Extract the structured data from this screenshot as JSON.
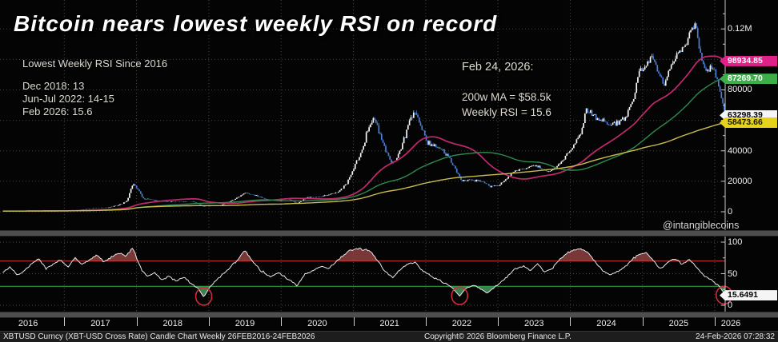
{
  "title": "Bitcoin nears lowest weekly RSI on record",
  "annotation_left": {
    "heading": "Lowest Weekly RSI Since 2016",
    "lines": [
      "Dec 2018: 13",
      "Jun-Jul 2022: 14-15",
      "Feb 2026: 15.6"
    ]
  },
  "annotation_right": {
    "heading": "Feb 24, 2026:",
    "lines": [
      "200w MA = $58.5k",
      "Weekly RSI = 15.6"
    ]
  },
  "watermark": "@intangiblecoins",
  "price_axis": {
    "labels": [
      {
        "text": "0.12M",
        "value": 120000
      },
      {
        "text": "80000",
        "value": 80000
      },
      {
        "text": "40000",
        "value": 40000
      },
      {
        "text": "20000",
        "value": 20000
      },
      {
        "text": "0",
        "value": 0
      }
    ]
  },
  "price_chips": [
    {
      "text": "98934.85",
      "value": 98934.85,
      "bg": "#e0218a",
      "fg": "#ffffff",
      "series": "50w-ma"
    },
    {
      "text": "87269.70",
      "value": 87269.7,
      "bg": "#3cae4a",
      "fg": "#ffffff",
      "series": "100w-ma"
    },
    {
      "text": "63298.39",
      "value": 63298.39,
      "bg": "#f5f5f5",
      "fg": "#000000",
      "series": "last-price"
    },
    {
      "text": "58473.66",
      "value": 58473.66,
      "bg": "#e6d21d",
      "fg": "#1a1a00",
      "series": "200w-ma"
    }
  ],
  "rsi_axis": {
    "labels": [
      {
        "text": "100",
        "value": 100
      },
      {
        "text": "50",
        "value": 50
      },
      {
        "text": "0",
        "value": 0
      }
    ],
    "chip": {
      "text": "15.6491",
      "value": 15.6491,
      "bg": "#f5f5f5",
      "fg": "#000000"
    }
  },
  "x_axis": {
    "years": [
      "2016",
      "2017",
      "2018",
      "2019",
      "2020",
      "2021",
      "2022",
      "2023",
      "2024",
      "2025",
      "2026"
    ]
  },
  "footer": {
    "left": "XBTUSD Curncy (XBT-USD Cross Rate) Candle Chart Weekly 26FEB2016-24FEB2026",
    "center": "Copyright© 2026 Bloomberg Finance L.P.",
    "right": "24-Feb-2026 07:28:32"
  },
  "chart_data": {
    "type": "candlestick+rsi",
    "instrument": "XBTUSD",
    "period": "Weekly",
    "x_domain_years": [
      2016.15,
      10.15
    ],
    "price_ylim": [
      0,
      126000
    ],
    "rsi_ylim": [
      0,
      100
    ],
    "last_price": 63298.39,
    "candle_up_color": "#f6f6f6",
    "candle_down_color": "#4a80d8",
    "price_keypoints": [
      [
        0.15,
        430
      ],
      [
        0.4,
        450
      ],
      [
        0.65,
        610
      ],
      [
        0.9,
        730
      ],
      [
        1.0,
        960
      ],
      [
        1.2,
        1150
      ],
      [
        1.45,
        2400
      ],
      [
        1.6,
        2600
      ],
      [
        1.75,
        4300
      ],
      [
        1.87,
        7200
      ],
      [
        1.95,
        18600
      ],
      [
        2.02,
        14500
      ],
      [
        2.1,
        8500
      ],
      [
        2.2,
        8000
      ],
      [
        2.35,
        6700
      ],
      [
        2.5,
        6400
      ],
      [
        2.62,
        6500
      ],
      [
        2.8,
        6300
      ],
      [
        2.92,
        3600
      ],
      [
        3.0,
        3700
      ],
      [
        3.15,
        4000
      ],
      [
        3.35,
        8000
      ],
      [
        3.5,
        12300
      ],
      [
        3.65,
        10500
      ],
      [
        3.8,
        8200
      ],
      [
        3.95,
        7200
      ],
      [
        4.1,
        8800
      ],
      [
        4.22,
        5300
      ],
      [
        4.35,
        9100
      ],
      [
        4.5,
        9400
      ],
      [
        4.65,
        11200
      ],
      [
        4.8,
        13000
      ],
      [
        4.92,
        19000
      ],
      [
        5.0,
        28000
      ],
      [
        5.1,
        38000
      ],
      [
        5.22,
        57000
      ],
      [
        5.3,
        61000
      ],
      [
        5.38,
        48000
      ],
      [
        5.5,
        34000
      ],
      [
        5.58,
        32500
      ],
      [
        5.7,
        47000
      ],
      [
        5.8,
        62000
      ],
      [
        5.88,
        65000
      ],
      [
        6.0,
        47000
      ],
      [
        6.15,
        42000
      ],
      [
        6.3,
        38000
      ],
      [
        6.42,
        28000
      ],
      [
        6.5,
        20500
      ],
      [
        6.65,
        21000
      ],
      [
        6.8,
        19500
      ],
      [
        6.9,
        16800
      ],
      [
        7.0,
        16800
      ],
      [
        7.1,
        21000
      ],
      [
        7.25,
        27500
      ],
      [
        7.4,
        28500
      ],
      [
        7.55,
        30200
      ],
      [
        7.68,
        26300
      ],
      [
        7.8,
        28000
      ],
      [
        7.95,
        37000
      ],
      [
        8.05,
        43500
      ],
      [
        8.15,
        52000
      ],
      [
        8.22,
        67000
      ],
      [
        8.3,
        64500
      ],
      [
        8.42,
        61000
      ],
      [
        8.55,
        56500
      ],
      [
        8.68,
        59000
      ],
      [
        8.78,
        63000
      ],
      [
        8.88,
        76000
      ],
      [
        8.95,
        92000
      ],
      [
        9.05,
        97500
      ],
      [
        9.12,
        102000
      ],
      [
        9.2,
        95000
      ],
      [
        9.3,
        83000
      ],
      [
        9.38,
        95000
      ],
      [
        9.5,
        106000
      ],
      [
        9.6,
        110000
      ],
      [
        9.68,
        121000
      ],
      [
        9.73,
        123500
      ],
      [
        9.8,
        105000
      ],
      [
        9.88,
        91000
      ],
      [
        9.95,
        96000
      ],
      [
        10.02,
        90000
      ],
      [
        10.08,
        78000
      ],
      [
        10.15,
        63298.39
      ]
    ],
    "ma_series": [
      {
        "name": "50-week MA",
        "window": 50,
        "color": "#c2286e",
        "end_value": 98934.85
      },
      {
        "name": "100-week MA",
        "window": 100,
        "color": "#2e8b4f",
        "end_value": 87269.7
      },
      {
        "name": "200-week MA",
        "window": 200,
        "color": "#c9bd4e",
        "end_value": 58473.66
      }
    ],
    "rsi": {
      "overbought": 70,
      "oversold": 30,
      "line_color": "#e8e8e8",
      "overbought_line_color": "#c03636",
      "oversold_line_color": "#2f9e44",
      "overbought_fill": "#a04848",
      "oversold_fill": "#4f9e63",
      "circle_color": "#cf2b3a",
      "last_value": 15.6491,
      "keypoints": [
        [
          0.15,
          52
        ],
        [
          0.25,
          60
        ],
        [
          0.35,
          48
        ],
        [
          0.45,
          55
        ],
        [
          0.55,
          66
        ],
        [
          0.65,
          74
        ],
        [
          0.75,
          58
        ],
        [
          0.85,
          65
        ],
        [
          0.95,
          72
        ],
        [
          1.05,
          60
        ],
        [
          1.15,
          75
        ],
        [
          1.25,
          65
        ],
        [
          1.35,
          72
        ],
        [
          1.45,
          80
        ],
        [
          1.55,
          68
        ],
        [
          1.65,
          76
        ],
        [
          1.75,
          83
        ],
        [
          1.85,
          78
        ],
        [
          1.95,
          91
        ],
        [
          2.05,
          60
        ],
        [
          2.15,
          45
        ],
        [
          2.25,
          52
        ],
        [
          2.35,
          40
        ],
        [
          2.45,
          47
        ],
        [
          2.55,
          38
        ],
        [
          2.65,
          44
        ],
        [
          2.75,
          35
        ],
        [
          2.85,
          27
        ],
        [
          2.93,
          13
        ],
        [
          3.02,
          30
        ],
        [
          3.12,
          42
        ],
        [
          3.25,
          55
        ],
        [
          3.4,
          72
        ],
        [
          3.5,
          87
        ],
        [
          3.6,
          70
        ],
        [
          3.72,
          55
        ],
        [
          3.85,
          45
        ],
        [
          3.95,
          52
        ],
        [
          4.05,
          45
        ],
        [
          4.15,
          38
        ],
        [
          4.22,
          30
        ],
        [
          4.32,
          48
        ],
        [
          4.45,
          55
        ],
        [
          4.55,
          62
        ],
        [
          4.65,
          58
        ],
        [
          4.75,
          68
        ],
        [
          4.85,
          78
        ],
        [
          4.95,
          86
        ],
        [
          5.05,
          90
        ],
        [
          5.15,
          88
        ],
        [
          5.25,
          85
        ],
        [
          5.35,
          68
        ],
        [
          5.45,
          52
        ],
        [
          5.55,
          44
        ],
        [
          5.65,
          56
        ],
        [
          5.75,
          65
        ],
        [
          5.85,
          68
        ],
        [
          5.95,
          55
        ],
        [
          6.05,
          48
        ],
        [
          6.15,
          42
        ],
        [
          6.25,
          36
        ],
        [
          6.35,
          30
        ],
        [
          6.47,
          14.5
        ],
        [
          6.55,
          26
        ],
        [
          6.65,
          32
        ],
        [
          6.75,
          27
        ],
        [
          6.85,
          20
        ],
        [
          6.95,
          28
        ],
        [
          7.05,
          38
        ],
        [
          7.15,
          48
        ],
        [
          7.25,
          58
        ],
        [
          7.35,
          63
        ],
        [
          7.45,
          55
        ],
        [
          7.55,
          66
        ],
        [
          7.65,
          52
        ],
        [
          7.75,
          58
        ],
        [
          7.85,
          72
        ],
        [
          7.95,
          82
        ],
        [
          8.05,
          88
        ],
        [
          8.15,
          90
        ],
        [
          8.25,
          84
        ],
        [
          8.35,
          68
        ],
        [
          8.45,
          55
        ],
        [
          8.55,
          48
        ],
        [
          8.65,
          53
        ],
        [
          8.75,
          60
        ],
        [
          8.85,
          72
        ],
        [
          8.95,
          80
        ],
        [
          9.05,
          84
        ],
        [
          9.15,
          70
        ],
        [
          9.25,
          58
        ],
        [
          9.35,
          68
        ],
        [
          9.45,
          74
        ],
        [
          9.55,
          65
        ],
        [
          9.65,
          73
        ],
        [
          9.75,
          60
        ],
        [
          9.85,
          48
        ],
        [
          9.95,
          40
        ],
        [
          10.05,
          32
        ],
        [
          10.15,
          15.6
        ]
      ],
      "circled_lows": [
        [
          2.93,
          14
        ],
        [
          6.47,
          15
        ],
        [
          10.13,
          16
        ]
      ]
    }
  }
}
